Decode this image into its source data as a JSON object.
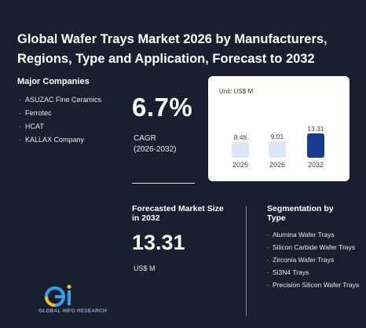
{
  "title": "Global Wafer Trays Market 2026 by Manufacturers, Regions, Type and Application, Forecast to 2032",
  "companies": {
    "heading": "Major Companies",
    "items": [
      "ASUZAC Fine Ceramics",
      "Ferrotec",
      "HCAT",
      "KALLAX Company"
    ]
  },
  "cagr": {
    "value": "6.7%",
    "label": "CAGR",
    "period": "(2026-2032)"
  },
  "chart_data": {
    "type": "bar",
    "unit_label": "Unit: US$ M",
    "categories": [
      "2025",
      "2026",
      "2032"
    ],
    "values": [
      8.48,
      9.01,
      13.31
    ],
    "colors": [
      "#dbe6f6",
      "#dbe6f6",
      "#173a92"
    ]
  },
  "forecast": {
    "label": "Forecasted Market Size in 2032",
    "value": "13.31",
    "unit": "US$ M"
  },
  "segmentation": {
    "heading": "Segmentation by Type",
    "items": [
      "Alumina Wafer Trays",
      "Silicon Carbide Wafer Trays",
      "Zirconia Wafer Trays",
      "Si3N4 Trays",
      "Precision Silicon Wafer Trays"
    ]
  },
  "logo": {
    "text": "GLOBAL INFO RESEARCH"
  }
}
